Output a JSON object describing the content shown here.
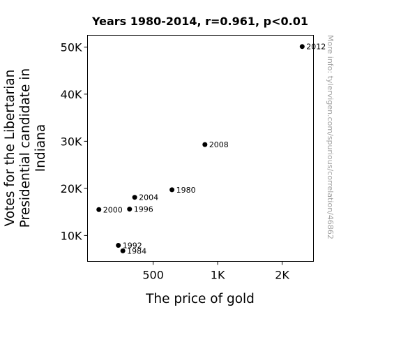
{
  "chart_data": {
    "type": "scatter",
    "title": "Years 1980-2014, r=0.961, p<0.01",
    "xlabel": "The price of gold",
    "ylabel_lines": [
      "Votes for the Libertarian",
      "Presidential candidate in",
      "Indiana"
    ],
    "x_scale": "log",
    "xlim": [
      247,
      2800
    ],
    "ylim": [
      4500,
      52500
    ],
    "x_ticks": [
      {
        "value": 500,
        "label": "500"
      },
      {
        "value": 1000,
        "label": "1K"
      },
      {
        "value": 2000,
        "label": "2K"
      }
    ],
    "y_ticks": [
      {
        "value": 10000,
        "label": "10K"
      },
      {
        "value": 20000,
        "label": "20K"
      },
      {
        "value": 30000,
        "label": "30K"
      },
      {
        "value": 40000,
        "label": "40K"
      },
      {
        "value": 50000,
        "label": "50K"
      }
    ],
    "points": [
      {
        "label": "1980",
        "x": 612,
        "y": 19700
      },
      {
        "label": "1984",
        "x": 361,
        "y": 6740
      },
      {
        "label": "1992",
        "x": 344,
        "y": 7900
      },
      {
        "label": "1996",
        "x": 388,
        "y": 15600
      },
      {
        "label": "2000",
        "x": 279,
        "y": 15500
      },
      {
        "label": "2004",
        "x": 410,
        "y": 18100
      },
      {
        "label": "2008",
        "x": 872,
        "y": 29300
      },
      {
        "label": "2012",
        "x": 2480,
        "y": 50100
      }
    ],
    "grid": false,
    "legend": "none"
  },
  "watermark": "More info: tylervigen.com/spurious/correlation/46862",
  "colors": {
    "marker": "#000000",
    "watermark": "#a0a0a0"
  }
}
